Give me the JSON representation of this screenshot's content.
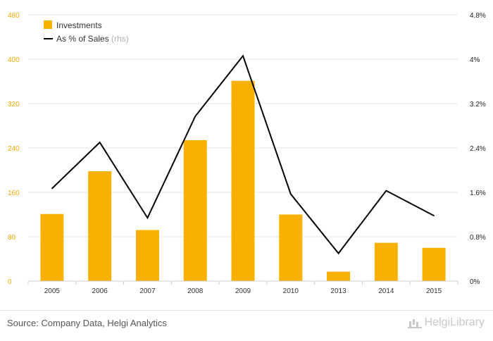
{
  "chart_data": {
    "type": "bar",
    "categories": [
      "2005",
      "2006",
      "2007",
      "2008",
      "2009",
      "2010",
      "2013",
      "2014",
      "2015"
    ],
    "series": [
      {
        "name": "Investments",
        "type": "bar",
        "axis": "left",
        "color": "#f8b100",
        "values": [
          121,
          198,
          92,
          254,
          361,
          120,
          17,
          69,
          60
        ]
      },
      {
        "name": "As % of Sales",
        "name_note": "(rhs)",
        "type": "line",
        "axis": "right",
        "color": "#000000",
        "values": [
          1.67,
          2.5,
          1.14,
          2.97,
          4.06,
          1.57,
          0.5,
          1.63,
          1.18
        ]
      }
    ],
    "ylim": [
      0,
      480
    ],
    "yticks": [
      "0",
      "80",
      "160",
      "240",
      "320",
      "400",
      "480"
    ],
    "y2lim": [
      0,
      4.8
    ],
    "y2ticks": [
      "0%",
      "0.8%",
      "1.6%",
      "2.4%",
      "3.2%",
      "4%",
      "4.8%"
    ],
    "grid": true,
    "legend": "top-left"
  },
  "footer": {
    "source": "Source: Company Data, Helgi Analytics",
    "logo_text": "HelgiLibrary"
  }
}
